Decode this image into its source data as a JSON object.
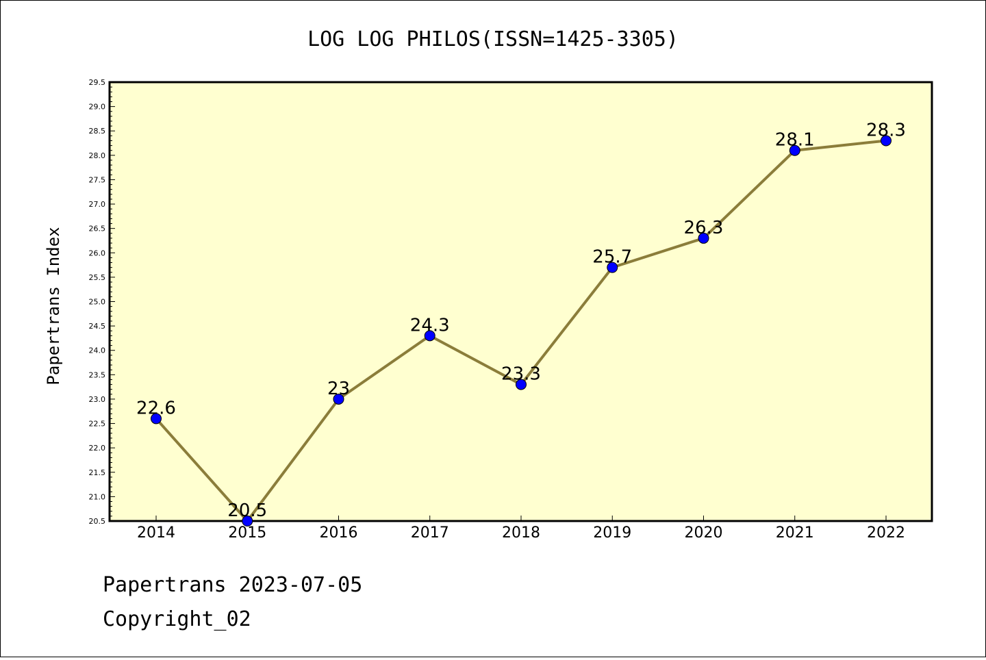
{
  "chart_data": {
    "type": "line",
    "title": "LOG LOG PHILOS(ISSN=1425-3305)",
    "ylabel": "Papertrans Index",
    "xlabel": "",
    "categories": [
      "2014",
      "2015",
      "2016",
      "2017",
      "2018",
      "2019",
      "2020",
      "2021",
      "2022"
    ],
    "series": [
      {
        "values": [
          22.6,
          20.5,
          23.0,
          24.3,
          23.3,
          25.7,
          26.3,
          28.1,
          28.3
        ]
      }
    ],
    "data_labels": [
      "22.6",
      "20.5",
      "23",
      "24.3",
      "23.3",
      "25.7",
      "26.3",
      "28.1",
      "28.3"
    ],
    "ylim": [
      20.5,
      29.5
    ],
    "yticks": [
      "20.5",
      "21.0",
      "21.5",
      "22.0",
      "22.5",
      "23.0",
      "23.5",
      "24.0",
      "24.5",
      "25.0",
      "25.5",
      "26.0",
      "26.5",
      "27.0",
      "27.5",
      "28.0",
      "28.5",
      "29.0",
      "29.5"
    ],
    "grid": false,
    "legend": "none",
    "colors": {
      "plot_background": "#ffffd0",
      "line": "#8b7d3a",
      "marker": "#0000ff"
    }
  },
  "footer": {
    "line1": "Papertrans 2023-07-05",
    "line2": "Copyright_02"
  }
}
